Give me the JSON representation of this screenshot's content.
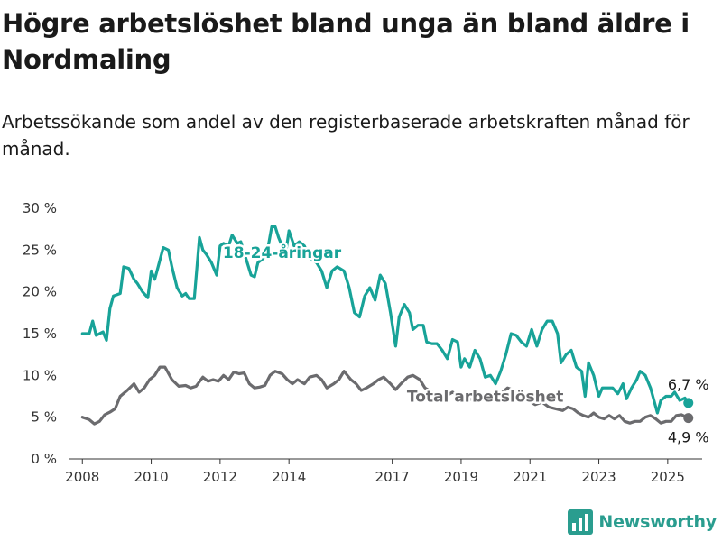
{
  "header": {
    "title": "Högre arbetslöshet bland unga än bland äldre i Nordmaling",
    "subtitle": "Arbetssökande som andel av den registerbaserade arbetskraften månad för månad."
  },
  "brand": {
    "name": "Newsworthy",
    "icon": "newsworthy-logo-icon"
  },
  "colors": {
    "youth": "#18a398",
    "total": "#6b6b6e",
    "axis": "#333333",
    "grid": "#dddddd"
  },
  "chart_data": {
    "type": "line",
    "title": "Högre arbetslöshet bland unga än bland äldre i Nordmaling",
    "subtitle": "Arbetssökande som andel av den registerbaserade arbetskraften månad för månad.",
    "xlabel": "",
    "ylabel": "",
    "xlim": [
      2007.6,
      2026.0
    ],
    "ylim": [
      0,
      30
    ],
    "yticks": [
      0,
      5,
      10,
      15,
      20,
      25,
      30
    ],
    "ytick_labels": [
      "0 %",
      "5 %",
      "10 %",
      "15 %",
      "20 %",
      "25 %",
      "30 %"
    ],
    "xticks": [
      2008,
      2010,
      2012,
      2014,
      2017,
      2019,
      2021,
      2023,
      2025
    ],
    "xtick_labels": [
      "2008",
      "2010",
      "2012",
      "2014",
      "2017",
      "2019",
      "2021",
      "2023",
      "2025"
    ],
    "grid": false,
    "series": [
      {
        "name": "18-24-åringar",
        "color": "#18a398",
        "end_label": "6,7 %",
        "points": [
          [
            2008.0,
            15
          ],
          [
            2008.2,
            15
          ],
          [
            2008.3,
            16.5
          ],
          [
            2008.4,
            14.8
          ],
          [
            2008.6,
            15.2
          ],
          [
            2008.7,
            14.2
          ],
          [
            2008.8,
            18
          ],
          [
            2008.9,
            19.5
          ],
          [
            2009.1,
            19.8
          ],
          [
            2009.2,
            23
          ],
          [
            2009.35,
            22.8
          ],
          [
            2009.5,
            21.5
          ],
          [
            2009.6,
            21
          ],
          [
            2009.75,
            20
          ],
          [
            2009.9,
            19.3
          ],
          [
            2010.0,
            22.5
          ],
          [
            2010.1,
            21.5
          ],
          [
            2010.2,
            23
          ],
          [
            2010.35,
            25.3
          ],
          [
            2010.5,
            25
          ],
          [
            2010.6,
            23
          ],
          [
            2010.75,
            20.5
          ],
          [
            2010.9,
            19.5
          ],
          [
            2011.0,
            19.8
          ],
          [
            2011.1,
            19.2
          ],
          [
            2011.25,
            19.2
          ],
          [
            2011.4,
            26.5
          ],
          [
            2011.5,
            25
          ],
          [
            2011.6,
            24.5
          ],
          [
            2011.75,
            23.5
          ],
          [
            2011.9,
            22
          ],
          [
            2012.0,
            25.5
          ],
          [
            2012.1,
            25.8
          ],
          [
            2012.25,
            25.5
          ],
          [
            2012.35,
            26.8
          ],
          [
            2012.5,
            25.8
          ],
          [
            2012.6,
            26
          ],
          [
            2012.75,
            24
          ],
          [
            2012.9,
            22
          ],
          [
            2013.0,
            21.8
          ],
          [
            2013.1,
            23.5
          ],
          [
            2013.25,
            24
          ],
          [
            2013.4,
            25.5
          ],
          [
            2013.5,
            27.8
          ],
          [
            2013.6,
            27.8
          ],
          [
            2013.7,
            26.5
          ],
          [
            2013.9,
            24.5
          ],
          [
            2014.0,
            27.3
          ],
          [
            2014.15,
            25.5
          ],
          [
            2014.3,
            26
          ],
          [
            2014.45,
            25.5
          ],
          [
            2014.6,
            24
          ],
          [
            2014.8,
            23.5
          ],
          [
            2014.95,
            22.5
          ],
          [
            2015.1,
            20.5
          ],
          [
            2015.25,
            22.5
          ],
          [
            2015.4,
            23
          ],
          [
            2015.6,
            22.5
          ],
          [
            2015.75,
            20.5
          ],
          [
            2015.9,
            17.5
          ],
          [
            2016.05,
            17
          ],
          [
            2016.2,
            19.5
          ],
          [
            2016.35,
            20.5
          ],
          [
            2016.5,
            19
          ],
          [
            2016.65,
            22
          ],
          [
            2016.8,
            21
          ],
          [
            2016.95,
            17.5
          ],
          [
            2017.1,
            13.5
          ],
          [
            2017.2,
            17
          ],
          [
            2017.35,
            18.5
          ],
          [
            2017.5,
            17.5
          ],
          [
            2017.6,
            15.5
          ],
          [
            2017.75,
            16
          ],
          [
            2017.9,
            16
          ],
          [
            2018.0,
            14
          ],
          [
            2018.15,
            13.8
          ],
          [
            2018.3,
            13.8
          ],
          [
            2018.45,
            13
          ],
          [
            2018.6,
            12
          ],
          [
            2018.75,
            14.3
          ],
          [
            2018.9,
            14
          ],
          [
            2019.0,
            11
          ],
          [
            2019.1,
            12
          ],
          [
            2019.25,
            11
          ],
          [
            2019.4,
            13
          ],
          [
            2019.55,
            12
          ],
          [
            2019.7,
            9.8
          ],
          [
            2019.85,
            10
          ],
          [
            2020.0,
            9
          ],
          [
            2020.15,
            10.5
          ],
          [
            2020.3,
            12.5
          ],
          [
            2020.45,
            15
          ],
          [
            2020.6,
            14.8
          ],
          [
            2020.75,
            14
          ],
          [
            2020.9,
            13.5
          ],
          [
            2021.05,
            15.5
          ],
          [
            2021.2,
            13.5
          ],
          [
            2021.35,
            15.5
          ],
          [
            2021.5,
            16.5
          ],
          [
            2021.65,
            16.5
          ],
          [
            2021.8,
            15
          ],
          [
            2021.9,
            11.5
          ],
          [
            2022.05,
            12.5
          ],
          [
            2022.2,
            13
          ],
          [
            2022.35,
            11
          ],
          [
            2022.5,
            10.5
          ],
          [
            2022.6,
            7.5
          ],
          [
            2022.7,
            11.5
          ],
          [
            2022.85,
            10
          ],
          [
            2023.0,
            7.5
          ],
          [
            2023.1,
            8.5
          ],
          [
            2023.25,
            8.5
          ],
          [
            2023.4,
            8.5
          ],
          [
            2023.55,
            7.8
          ],
          [
            2023.7,
            9
          ],
          [
            2023.8,
            7.2
          ],
          [
            2023.95,
            8.5
          ],
          [
            2024.1,
            9.5
          ],
          [
            2024.2,
            10.5
          ],
          [
            2024.35,
            10
          ],
          [
            2024.5,
            8.5
          ],
          [
            2024.6,
            7
          ],
          [
            2024.7,
            5.5
          ],
          [
            2024.8,
            7
          ],
          [
            2024.95,
            7.5
          ],
          [
            2025.1,
            7.5
          ],
          [
            2025.2,
            8
          ],
          [
            2025.35,
            7
          ],
          [
            2025.5,
            7.3
          ],
          [
            2025.6,
            6.7
          ]
        ]
      },
      {
        "name": "Total arbetslöshet",
        "color": "#6b6b6e",
        "end_label": "4,9 %",
        "points": [
          [
            2008.0,
            5
          ],
          [
            2008.2,
            4.7
          ],
          [
            2008.35,
            4.2
          ],
          [
            2008.5,
            4.5
          ],
          [
            2008.65,
            5.3
          ],
          [
            2008.8,
            5.6
          ],
          [
            2008.95,
            6
          ],
          [
            2009.1,
            7.5
          ],
          [
            2009.3,
            8.2
          ],
          [
            2009.5,
            9
          ],
          [
            2009.65,
            8
          ],
          [
            2009.8,
            8.5
          ],
          [
            2009.95,
            9.5
          ],
          [
            2010.1,
            10
          ],
          [
            2010.25,
            11
          ],
          [
            2010.4,
            11
          ],
          [
            2010.6,
            9.5
          ],
          [
            2010.8,
            8.7
          ],
          [
            2011.0,
            8.8
          ],
          [
            2011.15,
            8.5
          ],
          [
            2011.3,
            8.7
          ],
          [
            2011.5,
            9.8
          ],
          [
            2011.65,
            9.3
          ],
          [
            2011.8,
            9.5
          ],
          [
            2011.95,
            9.3
          ],
          [
            2012.1,
            10
          ],
          [
            2012.25,
            9.5
          ],
          [
            2012.4,
            10.4
          ],
          [
            2012.55,
            10.2
          ],
          [
            2012.7,
            10.3
          ],
          [
            2012.85,
            9
          ],
          [
            2013.0,
            8.5
          ],
          [
            2013.15,
            8.6
          ],
          [
            2013.3,
            8.8
          ],
          [
            2013.45,
            10
          ],
          [
            2013.6,
            10.5
          ],
          [
            2013.8,
            10.2
          ],
          [
            2013.95,
            9.5
          ],
          [
            2014.1,
            9
          ],
          [
            2014.25,
            9.5
          ],
          [
            2014.45,
            9
          ],
          [
            2014.6,
            9.8
          ],
          [
            2014.8,
            10
          ],
          [
            2014.95,
            9.5
          ],
          [
            2015.1,
            8.5
          ],
          [
            2015.3,
            9
          ],
          [
            2015.45,
            9.5
          ],
          [
            2015.6,
            10.5
          ],
          [
            2015.8,
            9.5
          ],
          [
            2015.95,
            9
          ],
          [
            2016.1,
            8.2
          ],
          [
            2016.25,
            8.5
          ],
          [
            2016.45,
            9
          ],
          [
            2016.6,
            9.5
          ],
          [
            2016.75,
            9.8
          ],
          [
            2016.95,
            9
          ],
          [
            2017.1,
            8.3
          ],
          [
            2017.25,
            9
          ],
          [
            2017.45,
            9.8
          ],
          [
            2017.6,
            10
          ],
          [
            2017.8,
            9.5
          ],
          [
            2017.95,
            8.5
          ],
          [
            2018.15,
            8
          ],
          [
            2018.35,
            7.6
          ],
          [
            2018.55,
            7.5
          ],
          [
            2018.75,
            8
          ],
          [
            2018.95,
            7.5
          ],
          [
            2019.15,
            7
          ],
          [
            2019.35,
            7.2
          ],
          [
            2019.55,
            7.5
          ],
          [
            2019.75,
            7
          ],
          [
            2019.95,
            7.3
          ],
          [
            2020.15,
            7.8
          ],
          [
            2020.35,
            8.5
          ],
          [
            2020.55,
            8.2
          ],
          [
            2020.75,
            7.8
          ],
          [
            2020.95,
            7
          ],
          [
            2021.15,
            6.5
          ],
          [
            2021.35,
            6.8
          ],
          [
            2021.55,
            6.2
          ],
          [
            2021.75,
            6
          ],
          [
            2021.95,
            5.8
          ],
          [
            2022.1,
            6.2
          ],
          [
            2022.25,
            6
          ],
          [
            2022.4,
            5.5
          ],
          [
            2022.55,
            5.2
          ],
          [
            2022.7,
            5
          ],
          [
            2022.85,
            5.5
          ],
          [
            2023.0,
            5
          ],
          [
            2023.15,
            4.8
          ],
          [
            2023.3,
            5.2
          ],
          [
            2023.45,
            4.8
          ],
          [
            2023.6,
            5.2
          ],
          [
            2023.75,
            4.5
          ],
          [
            2023.9,
            4.3
          ],
          [
            2024.05,
            4.5
          ],
          [
            2024.2,
            4.5
          ],
          [
            2024.35,
            5
          ],
          [
            2024.5,
            5.2
          ],
          [
            2024.65,
            4.8
          ],
          [
            2024.8,
            4.3
          ],
          [
            2024.95,
            4.5
          ],
          [
            2025.1,
            4.5
          ],
          [
            2025.25,
            5.2
          ],
          [
            2025.4,
            5.3
          ],
          [
            2025.6,
            4.9
          ]
        ]
      }
    ]
  }
}
